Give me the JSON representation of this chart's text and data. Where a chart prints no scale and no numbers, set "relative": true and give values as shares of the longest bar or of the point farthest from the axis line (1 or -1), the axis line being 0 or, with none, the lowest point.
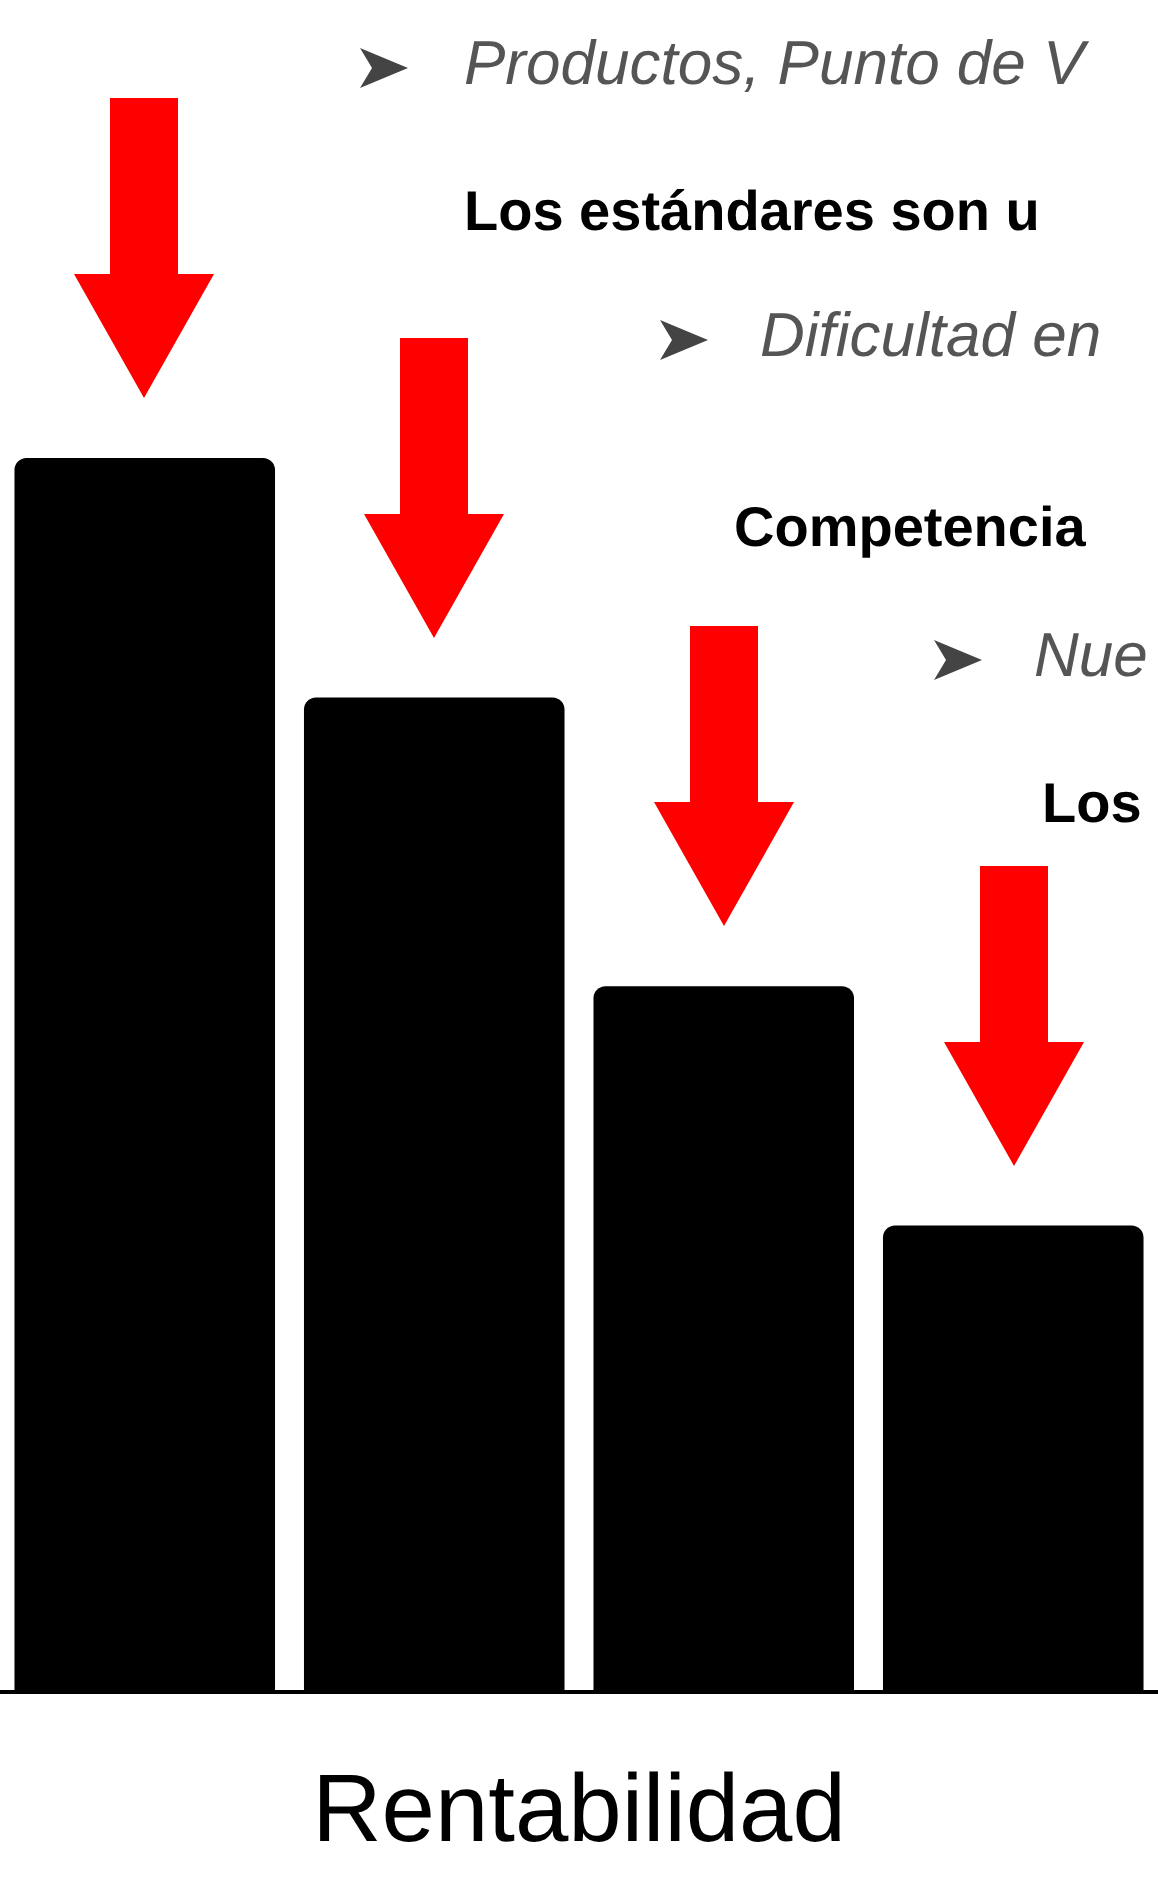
{
  "chart_data": {
    "type": "bar",
    "relative": true,
    "categories": [
      null,
      null,
      null,
      null
    ],
    "values": [
      1,
      0.806,
      0.572,
      0.378
    ],
    "color": "#000000",
    "xlabel": "Rentabilidad",
    "grid": false,
    "legend": false,
    "annotations": [
      "Productos, Punto de V",
      "Los estándares son u",
      "Dificultad en",
      "Competencia",
      "Nue",
      "Los"
    ]
  }
}
